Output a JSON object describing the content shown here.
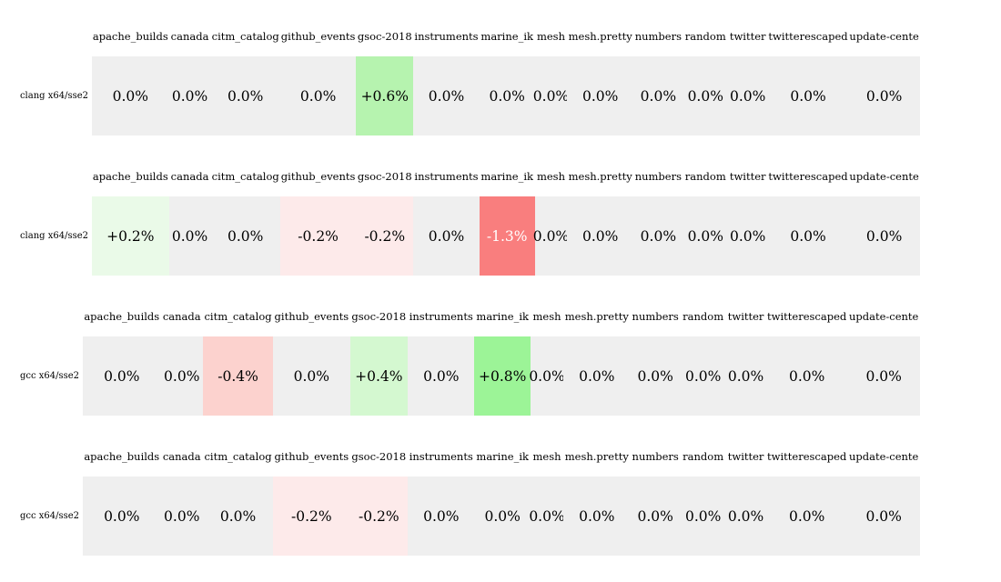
{
  "report": {
    "columns": [
      "apache_builds",
      "canada",
      "citm_catalog",
      "github_events",
      "gsoc-2018",
      "instruments",
      "marine_ik",
      "mesh",
      "mesh.pretty",
      "numbers",
      "random",
      "twitter",
      "twitterescaped",
      "update-cente"
    ],
    "palette": {
      "neutral": "#efefef",
      "pos_02": "#eafae8",
      "pos_04": "#d4f8d0",
      "pos_06": "#b6f3af",
      "pos_08": "#9cf497",
      "neg_02": "#fdeaea",
      "neg_04": "#fcd2ce",
      "neg_13": "#f97e7e"
    },
    "default_text_color": "#000000",
    "blocks": [
      {
        "label": "clang x64/sse2",
        "cells": [
          {
            "value": "0.0%",
            "bg": "neutral"
          },
          {
            "value": "0.0%",
            "bg": "neutral"
          },
          {
            "value": "0.0%",
            "bg": "neutral"
          },
          {
            "value": "0.0%",
            "bg": "neutral"
          },
          {
            "value": "+0.6%",
            "bg": "pos_06"
          },
          {
            "value": "0.0%",
            "bg": "neutral"
          },
          {
            "value": "0.0%",
            "bg": "neutral"
          },
          {
            "value": "0.0%",
            "bg": "neutral"
          },
          {
            "value": "0.0%",
            "bg": "neutral"
          },
          {
            "value": "0.0%",
            "bg": "neutral"
          },
          {
            "value": "0.0%",
            "bg": "neutral"
          },
          {
            "value": "0.0%",
            "bg": "neutral"
          },
          {
            "value": "0.0%",
            "bg": "neutral"
          },
          {
            "value": "0.0%",
            "bg": "neutral"
          }
        ]
      },
      {
        "label": "clang x64/sse2",
        "cells": [
          {
            "value": "+0.2%",
            "bg": "pos_02"
          },
          {
            "value": "0.0%",
            "bg": "neutral"
          },
          {
            "value": "0.0%",
            "bg": "neutral"
          },
          {
            "value": "-0.2%",
            "bg": "neg_02"
          },
          {
            "value": "-0.2%",
            "bg": "neg_02"
          },
          {
            "value": "0.0%",
            "bg": "neutral"
          },
          {
            "value": "-1.3%",
            "bg": "neg_13",
            "fg": "#ffffff"
          },
          {
            "value": "0.0%",
            "bg": "neutral"
          },
          {
            "value": "0.0%",
            "bg": "neutral"
          },
          {
            "value": "0.0%",
            "bg": "neutral"
          },
          {
            "value": "0.0%",
            "bg": "neutral"
          },
          {
            "value": "0.0%",
            "bg": "neutral"
          },
          {
            "value": "0.0%",
            "bg": "neutral"
          },
          {
            "value": "0.0%",
            "bg": "neutral"
          }
        ]
      },
      {
        "label": "gcc x64/sse2",
        "cells": [
          {
            "value": "0.0%",
            "bg": "neutral"
          },
          {
            "value": "0.0%",
            "bg": "neutral"
          },
          {
            "value": "-0.4%",
            "bg": "neg_04"
          },
          {
            "value": "0.0%",
            "bg": "neutral"
          },
          {
            "value": "+0.4%",
            "bg": "pos_04"
          },
          {
            "value": "0.0%",
            "bg": "neutral"
          },
          {
            "value": "+0.8%",
            "bg": "pos_08"
          },
          {
            "value": "0.0%",
            "bg": "neutral"
          },
          {
            "value": "0.0%",
            "bg": "neutral"
          },
          {
            "value": "0.0%",
            "bg": "neutral"
          },
          {
            "value": "0.0%",
            "bg": "neutral"
          },
          {
            "value": "0.0%",
            "bg": "neutral"
          },
          {
            "value": "0.0%",
            "bg": "neutral"
          },
          {
            "value": "0.0%",
            "bg": "neutral"
          }
        ]
      },
      {
        "label": "gcc x64/sse2",
        "cells": [
          {
            "value": "0.0%",
            "bg": "neutral"
          },
          {
            "value": "0.0%",
            "bg": "neutral"
          },
          {
            "value": "0.0%",
            "bg": "neutral"
          },
          {
            "value": "-0.2%",
            "bg": "neg_02"
          },
          {
            "value": "-0.2%",
            "bg": "neg_02"
          },
          {
            "value": "0.0%",
            "bg": "neutral"
          },
          {
            "value": "0.0%",
            "bg": "neutral"
          },
          {
            "value": "0.0%",
            "bg": "neutral"
          },
          {
            "value": "0.0%",
            "bg": "neutral"
          },
          {
            "value": "0.0%",
            "bg": "neutral"
          },
          {
            "value": "0.0%",
            "bg": "neutral"
          },
          {
            "value": "0.0%",
            "bg": "neutral"
          },
          {
            "value": "0.0%",
            "bg": "neutral"
          },
          {
            "value": "0.0%",
            "bg": "neutral"
          }
        ]
      }
    ]
  },
  "chart_data": {
    "type": "heatmap",
    "title": "",
    "columns": [
      "apache_builds",
      "canada",
      "citm_catalog",
      "github_events",
      "gsoc-2018",
      "instruments",
      "marine_ik",
      "mesh",
      "mesh.pretty",
      "numbers",
      "random",
      "twitter",
      "twitterescaped",
      "update-cente"
    ],
    "rows": [
      "clang x64/sse2",
      "clang x64/sse2",
      "gcc x64/sse2",
      "gcc x64/sse2"
    ],
    "values_percent": [
      [
        0.0,
        0.0,
        0.0,
        0.0,
        0.6,
        0.0,
        0.0,
        0.0,
        0.0,
        0.0,
        0.0,
        0.0,
        0.0,
        0.0
      ],
      [
        0.2,
        0.0,
        0.0,
        -0.2,
        -0.2,
        0.0,
        -1.3,
        0.0,
        0.0,
        0.0,
        0.0,
        0.0,
        0.0,
        0.0
      ],
      [
        0.0,
        0.0,
        -0.4,
        0.0,
        0.4,
        0.0,
        0.8,
        0.0,
        0.0,
        0.0,
        0.0,
        0.0,
        0.0,
        0.0
      ],
      [
        0.0,
        0.0,
        0.0,
        -0.2,
        -0.2,
        0.0,
        0.0,
        0.0,
        0.0,
        0.0,
        0.0,
        0.0,
        0.0,
        0.0
      ]
    ],
    "cell_label_format": "signed percent with one decimal, e.g. +0.6% / -1.3% / 0.0%",
    "color_scale": "green shades = positive change, red/pink shades = negative change, light grey = 0.0%",
    "legend": "none",
    "grid": "off",
    "layout": "four horizontal heatmap strips stacked vertically; each strip has its own column-header row above it and a row label on the left; all strips share a common right edge"
  }
}
